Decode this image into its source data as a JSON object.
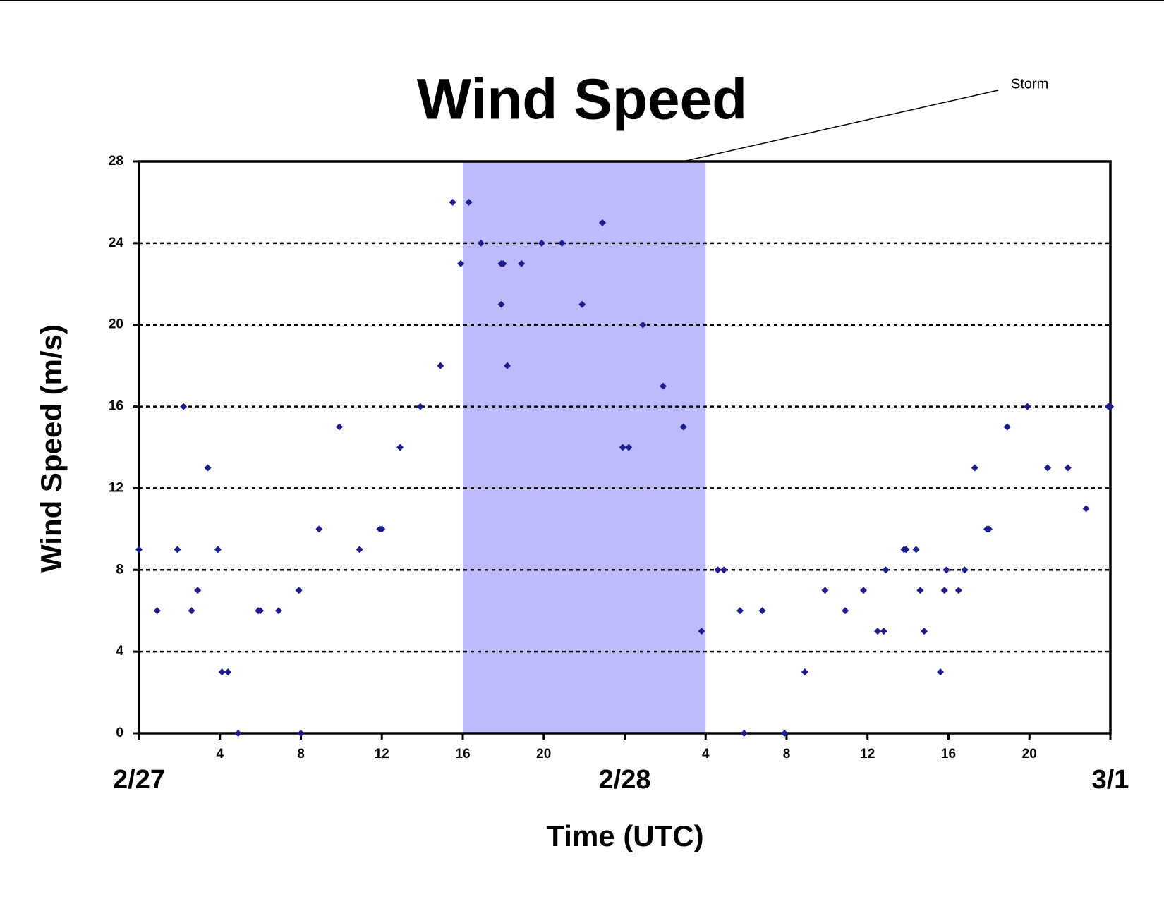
{
  "chart_data": {
    "type": "scatter",
    "title": "Wind Speed",
    "xlabel": "Time (UTC)",
    "ylabel": "Wind Speed (m/s)",
    "color": "#1c1c8a",
    "band": {
      "label": "Storm",
      "start": 16,
      "end": 28,
      "color": "#bcbcfc"
    },
    "xlim": [
      0,
      48
    ],
    "ylim": [
      0,
      28
    ],
    "yticks": [
      0,
      4,
      8,
      12,
      16,
      20,
      24,
      28
    ],
    "xticks": [
      4,
      8,
      12,
      16,
      20,
      {
        "value": 28,
        "label": "4"
      },
      {
        "value": 32,
        "label": "8"
      },
      {
        "value": 36,
        "label": "12"
      },
      {
        "value": 40,
        "label": "16"
      },
      {
        "value": 44,
        "label": "20"
      }
    ],
    "date_ticks": [
      {
        "value": 0,
        "label": "2/27"
      },
      {
        "value": 24,
        "label": "2/28"
      },
      {
        "value": 48,
        "label": "3/1"
      }
    ],
    "grid": true,
    "x": [
      0,
      0.9,
      1.9,
      2.2,
      2.6,
      2.9,
      3.4,
      3.9,
      4.1,
      4.4,
      4.9,
      5.9,
      6.0,
      6.9,
      7.9,
      8.0,
      8.9,
      9.9,
      10.9,
      11.9,
      12.0,
      12.9,
      13.9,
      14.9,
      15.5,
      15.9,
      16.3,
      16.9,
      17.9,
      17.9,
      18.0,
      18.2,
      18.9,
      19.9,
      20.9,
      21.9,
      22.9,
      23.9,
      24.2,
      24.9,
      25.9,
      26.9,
      27.8,
      28.6,
      28.9,
      29.7,
      29.9,
      30.8,
      31.9,
      32.9,
      33.9,
      34.9,
      35.8,
      36.5,
      36.8,
      36.9,
      37.8,
      37.9,
      38.4,
      38.6,
      38.8,
      39.6,
      39.8,
      39.9,
      40.5,
      40.8,
      41.3,
      41.9,
      42.0,
      42.9,
      43.9,
      44.9,
      45.9,
      46.8,
      47.9,
      48
    ],
    "values": [
      9,
      6,
      9,
      16,
      6,
      7,
      13,
      9,
      3,
      3,
      0,
      6,
      6,
      6,
      7,
      0,
      10,
      15,
      9,
      10,
      10,
      14,
      16,
      18,
      26,
      23,
      26,
      24,
      21,
      23,
      23,
      18,
      23,
      24,
      24,
      21,
      25,
      14,
      14,
      20,
      17,
      15,
      5,
      8,
      8,
      6,
      0,
      6,
      0,
      3,
      7,
      6,
      7,
      5,
      5,
      8,
      9,
      9,
      9,
      7,
      5,
      3,
      7,
      8,
      7,
      8,
      13,
      10,
      10,
      15,
      16,
      13,
      13,
      11,
      16,
      16
    ]
  }
}
